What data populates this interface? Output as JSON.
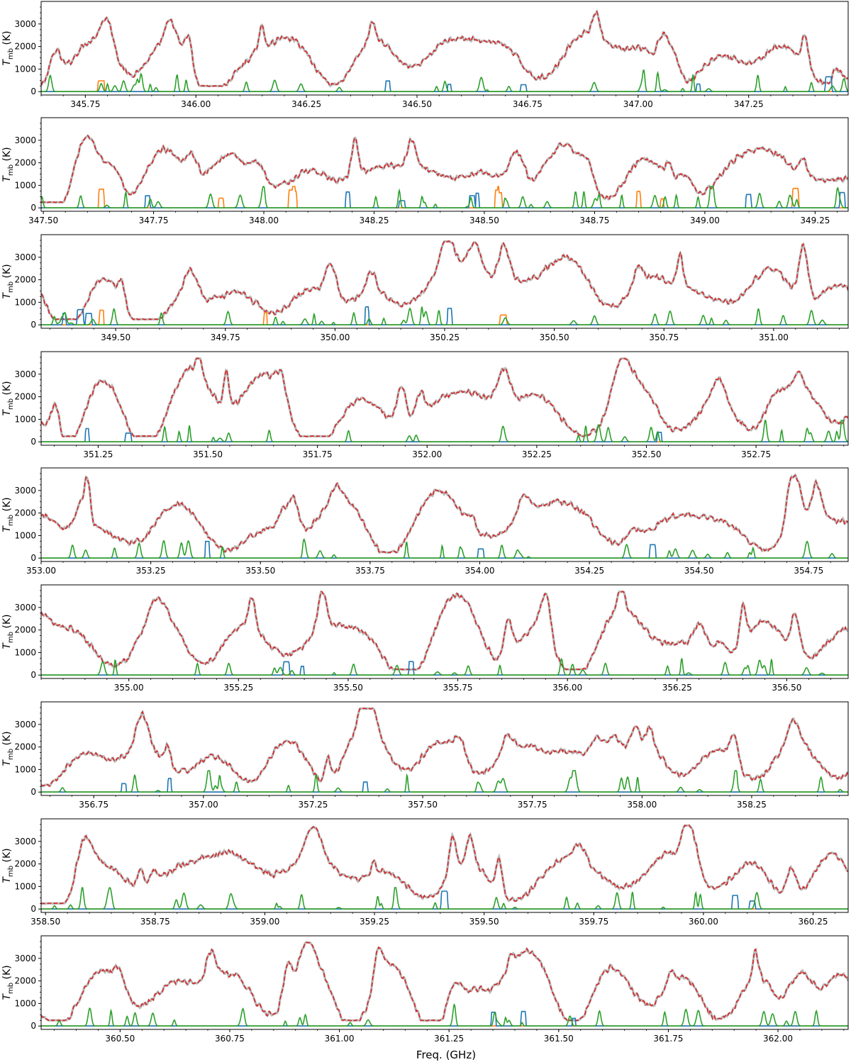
{
  "chart_data": {
    "type": "line",
    "xlabel": "Freq. (GHz)",
    "ylabel_main": "T",
    "ylabel_sub": "mb",
    "ylabel_unit": " (K)",
    "ylim": [
      -150,
      4000
    ],
    "yticks": [
      0,
      1000,
      2000,
      3000
    ],
    "series_colors": {
      "observed": "#b9b9b9",
      "model_total": "#d62728",
      "blue_lines": "#1f77b4",
      "orange_lines": "#ff7f0e",
      "green_lines": "#2ca02c"
    },
    "panels": [
      {
        "xlim": [
          345.65,
          347.475
        ],
        "xticks": [
          345.75,
          346.0,
          346.25,
          346.5,
          346.75,
          347.0,
          347.25
        ],
        "xtick_labels": [
          "345.75",
          "346.00",
          "346.25",
          "346.50",
          "346.75",
          "347.00",
          "347.25"
        ]
      },
      {
        "xlim": [
          347.495,
          349.325
        ],
        "xticks": [
          347.5,
          347.75,
          348.0,
          348.25,
          348.5,
          348.75,
          349.0,
          349.25
        ],
        "xtick_labels": [
          "347.50",
          "347.75",
          "348.00",
          "348.25",
          "348.50",
          "348.75",
          "349.00",
          "349.25"
        ]
      },
      {
        "xlim": [
          349.33,
          351.17
        ],
        "xticks": [
          349.5,
          349.75,
          350.0,
          350.25,
          350.5,
          350.75,
          351.0
        ],
        "xtick_labels": [
          "349.50",
          "349.75",
          "350.00",
          "350.25",
          "350.50",
          "350.75",
          "351.00"
        ]
      },
      {
        "xlim": [
          351.12,
          352.96
        ],
        "xticks": [
          351.25,
          351.5,
          351.75,
          352.0,
          352.25,
          352.5,
          352.75
        ],
        "xtick_labels": [
          "351.25",
          "351.50",
          "351.75",
          "352.00",
          "352.25",
          "352.50",
          "352.75"
        ]
      },
      {
        "xlim": [
          353.0,
          354.84
        ],
        "xticks": [
          353.0,
          353.25,
          353.5,
          353.75,
          354.0,
          354.25,
          354.5,
          354.75
        ],
        "xtick_labels": [
          "353.00",
          "353.25",
          "353.50",
          "353.75",
          "354.00",
          "354.25",
          "354.50",
          "354.75"
        ]
      },
      {
        "xlim": [
          354.8,
          356.64
        ],
        "xticks": [
          355.0,
          355.25,
          355.5,
          355.75,
          356.0,
          356.25,
          356.5
        ],
        "xtick_labels": [
          "355.00",
          "355.25",
          "355.50",
          "355.75",
          "356.00",
          "356.25",
          "356.50"
        ]
      },
      {
        "xlim": [
          356.63,
          358.47
        ],
        "xticks": [
          356.75,
          357.0,
          357.25,
          357.5,
          357.75,
          358.0,
          358.25
        ],
        "xtick_labels": [
          "356.75",
          "357.00",
          "357.25",
          "357.50",
          "357.75",
          "358.00",
          "358.25"
        ]
      },
      {
        "xlim": [
          358.49,
          360.33
        ],
        "xticks": [
          358.5,
          358.75,
          359.0,
          359.25,
          359.5,
          359.75,
          360.0,
          360.25
        ],
        "xtick_labels": [
          "358.50",
          "358.75",
          "359.00",
          "359.25",
          "359.50",
          "359.75",
          "360.00",
          "360.25"
        ]
      },
      {
        "xlim": [
          360.32,
          362.16
        ],
        "xticks": [
          360.5,
          360.75,
          361.0,
          361.25,
          361.5,
          361.75,
          362.0
        ],
        "xtick_labels": [
          "360.50",
          "360.75",
          "361.00",
          "361.25",
          "361.50",
          "361.75",
          "362.00"
        ]
      }
    ]
  }
}
